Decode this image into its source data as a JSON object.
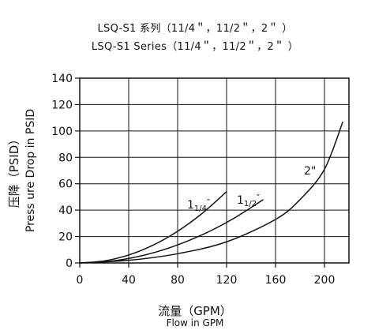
{
  "header": {
    "title_cn": "LSQ-S1 系列（11/4＂，11/2＂，2＂ ）",
    "title_en": "LSQ-S1 Series（11/4＂，11/2＂，2＂ ）"
  },
  "chart_data": {
    "type": "line",
    "xlabel_cn": "流量（GPM）",
    "xlabel_en": "Flow in GPM",
    "ylabel_cn": "压降（PSID）",
    "ylabel_en": "Press ure Drop in PSID",
    "xlim": [
      0,
      220
    ],
    "ylim": [
      0,
      140
    ],
    "xticks": [
      0,
      40,
      80,
      120,
      160,
      200
    ],
    "yticks": [
      0,
      20,
      40,
      60,
      80,
      100,
      120,
      140
    ],
    "grid": true,
    "series": [
      {
        "name": "11/4″",
        "label_main": "1",
        "label_sub": "1/4",
        "label_mark": "″",
        "x": [
          0,
          20,
          40,
          60,
          80,
          100,
          120
        ],
        "y": [
          0,
          1.5,
          6,
          13.5,
          24,
          37.5,
          54
        ]
      },
      {
        "name": "11/2″",
        "label_main": "1",
        "label_sub": "1/2",
        "label_mark": "″",
        "x": [
          0,
          25,
          50,
          75,
          100,
          125,
          150
        ],
        "y": [
          0,
          1.3,
          5.3,
          12,
          21.3,
          33.3,
          48
        ]
      },
      {
        "name": "2\"",
        "label_main": "2\"",
        "label_sub": "",
        "label_mark": "",
        "x": [
          0,
          40,
          80,
          120,
          160,
          180,
          200,
          215
        ],
        "y": [
          0,
          2,
          7,
          16,
          33,
          48,
          71,
          107
        ]
      }
    ]
  }
}
